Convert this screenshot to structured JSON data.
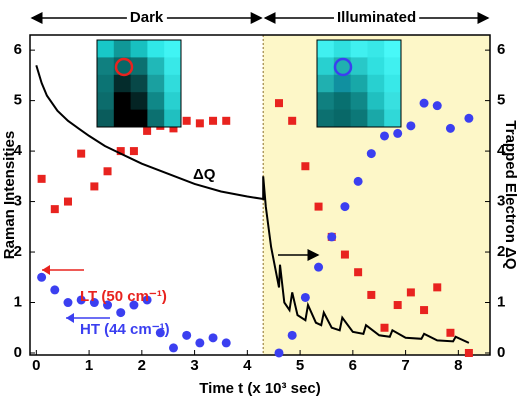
{
  "chart_data": {
    "type": "scatter",
    "xlabel": "Time t (x 10³ sec)",
    "ylabel": "Raman Intensities",
    "y2label": "Trapped Electron ΔQ",
    "xlim": [
      -0.12,
      8.6
    ],
    "xticks": [
      0,
      1,
      2,
      3,
      4,
      5,
      6,
      7,
      8
    ],
    "ylim": [
      -0.04,
      6.3
    ],
    "yticks": [
      0,
      1,
      2,
      3,
      4,
      5,
      6
    ],
    "y2lim": [
      -0.04,
      6.3
    ],
    "y2ticks": [
      0,
      1,
      2,
      3,
      4,
      5,
      6
    ],
    "illumination_start": 4.3,
    "region_labels": [
      "Dark",
      "Illuminated"
    ],
    "annotations": [
      "LT (50 cm⁻¹)",
      "HT (44 cm⁻¹)",
      "ΔQ"
    ],
    "series": [
      {
        "color": "#e8231f",
        "marker": "square",
        "x": [
          0.1,
          0.35,
          0.6,
          0.85,
          1.1,
          1.35,
          1.6,
          1.85,
          2.1,
          2.35,
          2.6,
          2.85,
          3.1,
          3.35,
          3.6,
          4.6,
          4.85,
          5.1,
          5.35,
          5.6,
          5.85,
          6.1,
          6.35,
          6.6,
          6.85,
          7.1,
          7.35,
          7.6,
          7.85,
          8.2
        ],
        "values": [
          3.45,
          2.85,
          3.0,
          3.95,
          3.3,
          3.6,
          4.0,
          4.0,
          4.4,
          4.5,
          4.45,
          4.6,
          4.55,
          4.6,
          4.6,
          4.95,
          4.6,
          3.7,
          2.9,
          2.3,
          1.95,
          1.6,
          1.15,
          0.5,
          0.95,
          1.2,
          0.85,
          1.3,
          0.4,
          0.0
        ]
      },
      {
        "color": "#3b3ff0",
        "marker": "circle",
        "x": [
          0.1,
          0.35,
          0.6,
          0.85,
          1.1,
          1.35,
          1.6,
          1.85,
          2.1,
          2.35,
          2.6,
          2.85,
          3.1,
          3.35,
          3.6,
          4.6,
          4.85,
          5.1,
          5.35,
          5.6,
          5.85,
          6.1,
          6.35,
          6.6,
          6.85,
          7.1,
          7.35,
          7.6,
          7.85,
          8.2
        ],
        "values": [
          1.5,
          1.25,
          1.0,
          1.05,
          1.0,
          0.95,
          0.8,
          0.95,
          1.05,
          0.4,
          0.1,
          0.35,
          0.2,
          0.3,
          0.2,
          0.0,
          0.35,
          1.1,
          1.7,
          2.3,
          2.9,
          3.4,
          3.95,
          4.3,
          4.35,
          4.5,
          4.95,
          4.9,
          4.45,
          4.65
        ]
      },
      {
        "color": "#000000",
        "marker": "line",
        "axis": "y2",
        "x": [
          0,
          0.1,
          0.2,
          0.4,
          0.6,
          0.8,
          1.0,
          1.3,
          1.6,
          2.0,
          2.5,
          3.0,
          3.5,
          4.0,
          4.3,
          4.3,
          4.35,
          4.45,
          4.6,
          4.62,
          4.7,
          4.8,
          4.85,
          4.95,
          5.1,
          5.15,
          5.3,
          5.4,
          5.45,
          5.6,
          5.75,
          5.8,
          6.0,
          6.2,
          6.25,
          6.5,
          6.7,
          6.75,
          7.0,
          7.3,
          7.35,
          7.6,
          7.9,
          7.95,
          8.2
        ],
        "values": [
          5.7,
          5.35,
          5.1,
          4.8,
          4.6,
          4.45,
          4.3,
          4.1,
          3.95,
          3.75,
          3.55,
          3.35,
          3.2,
          3.1,
          3.05,
          3.5,
          2.9,
          2.1,
          1.3,
          1.75,
          1.0,
          0.85,
          1.2,
          0.75,
          0.65,
          0.95,
          0.6,
          0.55,
          0.8,
          0.5,
          0.45,
          0.7,
          0.42,
          0.38,
          0.55,
          0.35,
          0.32,
          0.45,
          0.3,
          0.28,
          0.38,
          0.25,
          0.23,
          0.32,
          0.2
        ]
      }
    ]
  }
}
